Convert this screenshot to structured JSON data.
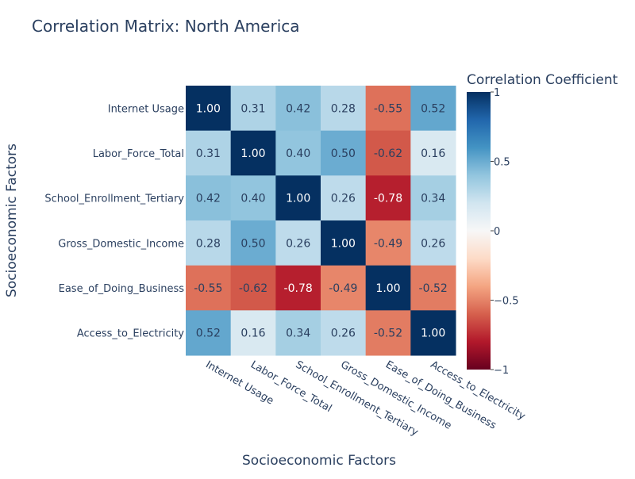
{
  "chart_data": {
    "type": "heatmap",
    "title": "Correlation Matrix: North America",
    "xlabel": "Socioeconomic Factors",
    "ylabel": "Socioeconomic Factors",
    "colorbar_title": "Correlation Coefficient",
    "colorbar_ticks": [
      {
        "value": 1,
        "label": "1"
      },
      {
        "value": 0.5,
        "label": "0.5"
      },
      {
        "value": 0,
        "label": "0"
      },
      {
        "value": -0.5,
        "label": "−0.5"
      },
      {
        "value": -1,
        "label": "−1"
      }
    ],
    "zmin": -1,
    "zmax": 1,
    "colorscale": "RdBu",
    "x_categories": [
      "Internet Usage",
      "Labor_Force_Total",
      "School_Enrollment_Tertiary",
      "Gross_Domestic_Income",
      "Ease_of_Doing_Business",
      "Access_to_Electricity"
    ],
    "y_categories": [
      "Internet Usage",
      "Labor_Force_Total",
      "School_Enrollment_Tertiary",
      "Gross_Domestic_Income",
      "Ease_of_Doing_Business",
      "Access_to_Electricity"
    ],
    "values": [
      [
        1.0,
        0.31,
        0.42,
        0.28,
        -0.55,
        0.52
      ],
      [
        0.31,
        1.0,
        0.4,
        0.5,
        -0.62,
        0.16
      ],
      [
        0.42,
        0.4,
        1.0,
        0.26,
        -0.78,
        0.34
      ],
      [
        0.28,
        0.5,
        0.26,
        1.0,
        -0.49,
        0.26
      ],
      [
        -0.55,
        -0.62,
        -0.78,
        -0.49,
        1.0,
        -0.52
      ],
      [
        0.52,
        0.16,
        0.34,
        0.26,
        -0.52,
        1.0
      ]
    ],
    "value_labels": [
      [
        "1.00",
        "0.31",
        "0.42",
        "0.28",
        "-0.55",
        "0.52"
      ],
      [
        "0.31",
        "1.00",
        "0.40",
        "0.50",
        "-0.62",
        "0.16"
      ],
      [
        "0.42",
        "0.40",
        "1.00",
        "0.26",
        "-0.78",
        "0.34"
      ],
      [
        "0.28",
        "0.50",
        "0.26",
        "1.00",
        "-0.49",
        "0.26"
      ],
      [
        "-0.55",
        "-0.62",
        "-0.78",
        "-0.49",
        "1.00",
        "-0.52"
      ],
      [
        "0.52",
        "0.16",
        "0.34",
        "0.26",
        "-0.52",
        "1.00"
      ]
    ],
    "colors": {
      "text": "#2a3f5f",
      "light_text": "#ffffff"
    }
  }
}
